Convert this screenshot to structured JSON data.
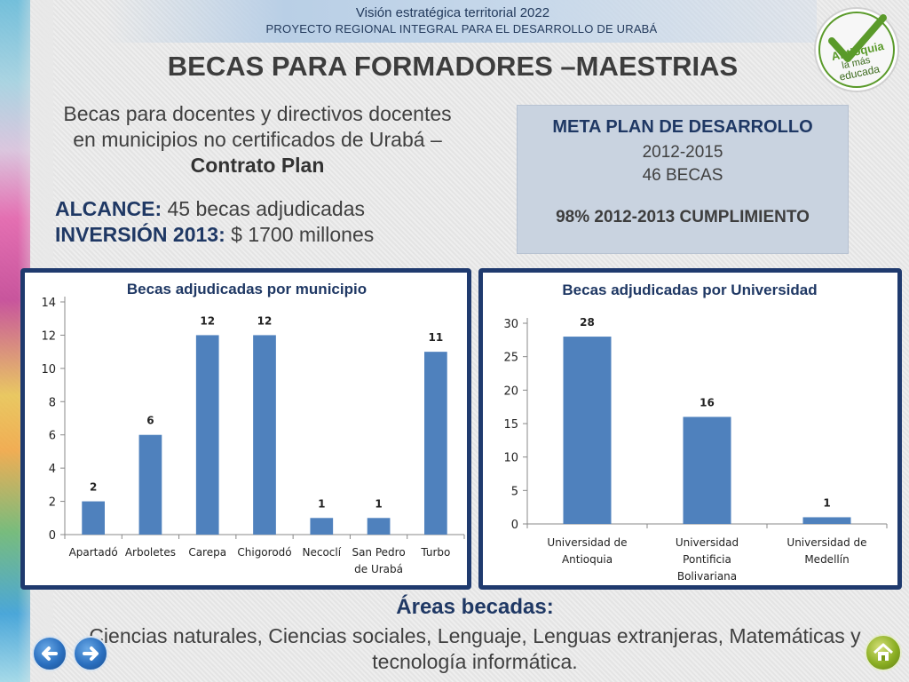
{
  "banner": {
    "line1": "Visión estratégica territorial 2022",
    "line2": "PROYECTO REGIONAL INTEGRAL PARA EL DESARROLLO DE URABÁ"
  },
  "logo": {
    "icon": "antioquia-check-logo",
    "text_line1": "Antioquia",
    "text_line2": "la más",
    "text_line3": "educada",
    "color": "#5a9a2a"
  },
  "title": "BECAS PARA FORMADORES –MAESTRIAS",
  "intro": {
    "text": "Becas para docentes y directivos docentes en municipios no certificados de Urabá – ",
    "bold": "Contrato Plan"
  },
  "alcance": {
    "label": "ALCANCE:",
    "value": " 45 becas adjudicadas",
    "inv_label": "INVERSIÓN 2013:",
    "inv_value": " $ 1700 millones"
  },
  "meta": {
    "title": "META PLAN DE DESARROLLO",
    "years": "2012-2015",
    "becas": "46 BECAS",
    "cumplimiento": "98% 2012-2013 CUMPLIMIENTO"
  },
  "chart_data": [
    {
      "type": "bar",
      "title": "Becas adjudicadas por municipio",
      "categories": [
        "Apartadó",
        "Arboletes",
        "Carepa",
        "Chigorodó",
        "Necoclí",
        "San Pedro de Urabá",
        "Turbo"
      ],
      "category_lines": [
        [
          "Apartadó"
        ],
        [
          "Arboletes"
        ],
        [
          "Carepa"
        ],
        [
          "Chigorodó"
        ],
        [
          "Necoclí"
        ],
        [
          "San Pedro",
          "de Urabá"
        ],
        [
          "Turbo"
        ]
      ],
      "values": [
        2,
        6,
        12,
        12,
        1,
        1,
        11
      ],
      "ylim": [
        0,
        14
      ],
      "yticks": [
        0,
        2,
        4,
        6,
        8,
        10,
        12,
        14
      ],
      "xlabel": "",
      "ylabel": "",
      "grid": false,
      "color": "#4f81bd"
    },
    {
      "type": "bar",
      "title": "Becas adjudicadas por Universidad",
      "categories": [
        "Universidad de Antioquia",
        "Universidad Pontificia Bolivariana",
        "Universidad de Medellín"
      ],
      "category_lines": [
        [
          "Universidad de",
          "Antioquia"
        ],
        [
          "Universidad",
          "Pontificia",
          "Bolivariana"
        ],
        [
          "Universidad de",
          "Medellín"
        ]
      ],
      "values": [
        28,
        16,
        1
      ],
      "ylim": [
        0,
        30
      ],
      "yticks": [
        0,
        5,
        10,
        15,
        20,
        25,
        30
      ],
      "xlabel": "",
      "ylabel": "",
      "grid": false,
      "color": "#4f81bd"
    }
  ],
  "areas": {
    "title": "Áreas becadas:",
    "text": "Ciencias naturales, Ciencias sociales, Lenguaje,  Lenguas extranjeras, Matemáticas y tecnología informática."
  },
  "nav": {
    "back_icon": "arrow-left-icon",
    "forward_icon": "arrow-right-icon",
    "home_icon": "home-icon"
  }
}
